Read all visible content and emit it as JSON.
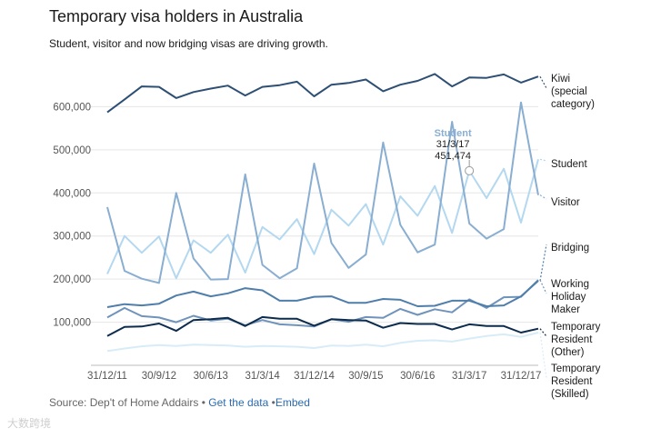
{
  "header": {
    "title": "Temporary visa holders in Australia",
    "subtitle": "Student, visitor and now bridging visas are driving growth."
  },
  "footer": {
    "source": "Source: Dep't of Home Addairs",
    "dot": "•",
    "get_data": "Get the data",
    "embed": "Embed"
  },
  "watermark": "大数跨境",
  "chart_data": {
    "type": "line",
    "x_tick_labels": [
      "31/12/11",
      "30/9/12",
      "30/6/13",
      "31/3/14",
      "31/12/14",
      "30/9/15",
      "30/6/16",
      "31/3/17",
      "31/12/17"
    ],
    "x_tick_index": [
      0,
      3,
      6,
      9,
      12,
      15,
      18,
      21,
      24
    ],
    "ylim": [
      0,
      700000
    ],
    "yticks": [
      100000,
      200000,
      300000,
      400000,
      500000,
      600000
    ],
    "ytick_labels": [
      "100,000",
      "200,000",
      "300,000",
      "400,000",
      "500,000",
      "600,000"
    ],
    "grid": true,
    "annotation": {
      "series": "Student",
      "label": "Student",
      "date": "31/3/17",
      "value_text": "451,474",
      "index": 21,
      "value": 451474
    },
    "series": [
      {
        "name": "Kiwi (special category)",
        "label_lines": [
          "Kiwi",
          "(special",
          "category)"
        ],
        "color": "#2d4f73",
        "values": [
          587000,
          617000,
          647000,
          646000,
          620000,
          634000,
          642000,
          649000,
          626000,
          646000,
          650000,
          658000,
          624000,
          651000,
          655000,
          663000,
          636000,
          651000,
          660000,
          676000,
          647000,
          668000,
          667000,
          675000,
          656000,
          670000
        ]
      },
      {
        "name": "Student",
        "label_lines": [
          "Student"
        ],
        "color": "#b3d8f0",
        "values": [
          212000,
          300000,
          261000,
          299000,
          202000,
          290000,
          261000,
          303000,
          215000,
          321000,
          292000,
          339000,
          258000,
          361000,
          324000,
          374000,
          280000,
          392000,
          347000,
          416000,
          307000,
          451474,
          388000,
          456000,
          331000,
          478000
        ]
      },
      {
        "name": "Visitor",
        "label_lines": [
          "Visitor"
        ],
        "color": "#89aed1",
        "values": [
          367000,
          219000,
          201000,
          191000,
          400000,
          248000,
          199000,
          200000,
          443000,
          233000,
          202000,
          225000,
          468000,
          284000,
          226000,
          257000,
          517000,
          326000,
          262000,
          280000,
          565000,
          329000,
          294000,
          316000,
          610000,
          395000
        ]
      },
      {
        "name": "Bridging",
        "label_lines": [
          "Bridging"
        ],
        "color": "#4f7eab",
        "values": [
          135000,
          142000,
          139000,
          143000,
          162000,
          171000,
          160000,
          167000,
          179000,
          174000,
          150000,
          150000,
          159000,
          160000,
          145000,
          145000,
          154000,
          152000,
          137000,
          138000,
          150000,
          150000,
          137000,
          139000,
          160000,
          196000
        ]
      },
      {
        "name": "Working Holiday Maker",
        "label_lines": [
          "Working",
          "Holiday",
          "Maker"
        ],
        "color": "#6f93ba",
        "values": [
          111000,
          133000,
          114000,
          111000,
          100000,
          115000,
          104000,
          108000,
          93000,
          105000,
          95000,
          93000,
          90000,
          107000,
          101000,
          112000,
          110000,
          131000,
          117000,
          130000,
          123000,
          153000,
          133000,
          158000,
          159000,
          198000
        ]
      },
      {
        "name": "Temporary Resident (Other)",
        "label_lines": [
          "Temporary",
          "Resident",
          "(Other)"
        ],
        "color": "#0d2c4d",
        "values": [
          68000,
          89000,
          90000,
          97000,
          80000,
          105000,
          107000,
          110000,
          91000,
          112000,
          108000,
          108000,
          92000,
          107000,
          105000,
          104000,
          87000,
          98000,
          96000,
          96000,
          83000,
          95000,
          91000,
          91000,
          76000,
          85000
        ]
      },
      {
        "name": "Temporary Resident (Skilled)",
        "label_lines": [
          "Temporary",
          "Resident",
          "(Skilled)"
        ],
        "color": "#d8ecf8",
        "values": [
          33000,
          39000,
          44000,
          47000,
          45000,
          48000,
          47000,
          46000,
          43000,
          45000,
          44000,
          43000,
          40000,
          46000,
          45000,
          48000,
          44000,
          52000,
          57000,
          58000,
          55000,
          62000,
          68000,
          72000,
          66000,
          76000
        ]
      }
    ]
  }
}
